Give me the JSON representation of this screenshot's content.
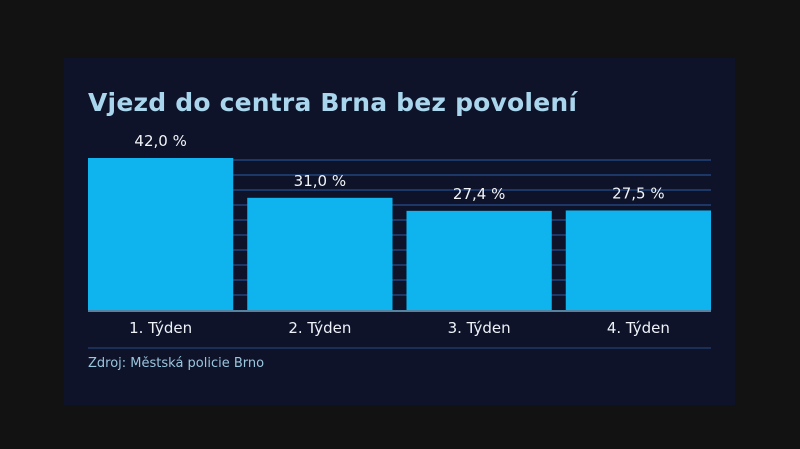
{
  "chart_data": {
    "type": "bar",
    "title": "Vjezd do centra Brna bez povolení",
    "categories": [
      "1. Týden",
      "2. Týden",
      "3. Týden",
      "4. Týden"
    ],
    "values": [
      42.0,
      31.0,
      27.4,
      27.5
    ],
    "value_labels": [
      "42,0 %",
      "31,0 %",
      "27,4 %",
      "27,5 %"
    ],
    "ylim": [
      0,
      42
    ],
    "grid": true,
    "source": "Zdroj: Městská policie Brno",
    "colors": {
      "bar": "#0fb4ee",
      "grid": "#1d3766",
      "title": "#a9d6ec",
      "background": "#0e1329"
    }
  }
}
